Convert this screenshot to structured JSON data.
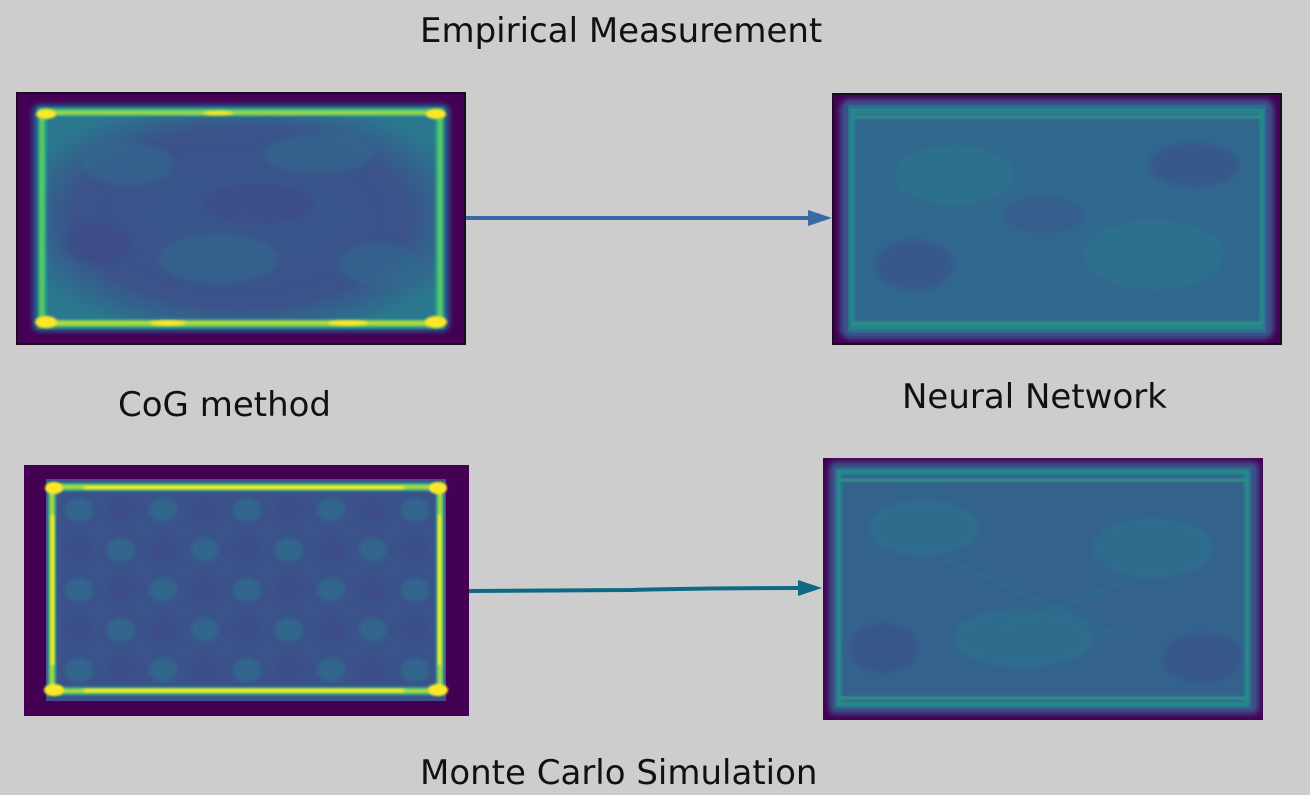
{
  "titles": {
    "top": "Empirical Measurement",
    "bottom": "Monte Carlo Simulation"
  },
  "columns": {
    "left": "CoG method",
    "right": "Neural Network"
  },
  "colors": {
    "background": "#cdcdcd",
    "viridis_dark": "#440154",
    "viridis_mid": "#3b528b",
    "viridis_teal": "#21918c",
    "viridis_green": "#5ec962",
    "viridis_yellow": "#fde725",
    "arrow_top": "#3a6aa6",
    "arrow_bottom": "#0e6a82"
  }
}
